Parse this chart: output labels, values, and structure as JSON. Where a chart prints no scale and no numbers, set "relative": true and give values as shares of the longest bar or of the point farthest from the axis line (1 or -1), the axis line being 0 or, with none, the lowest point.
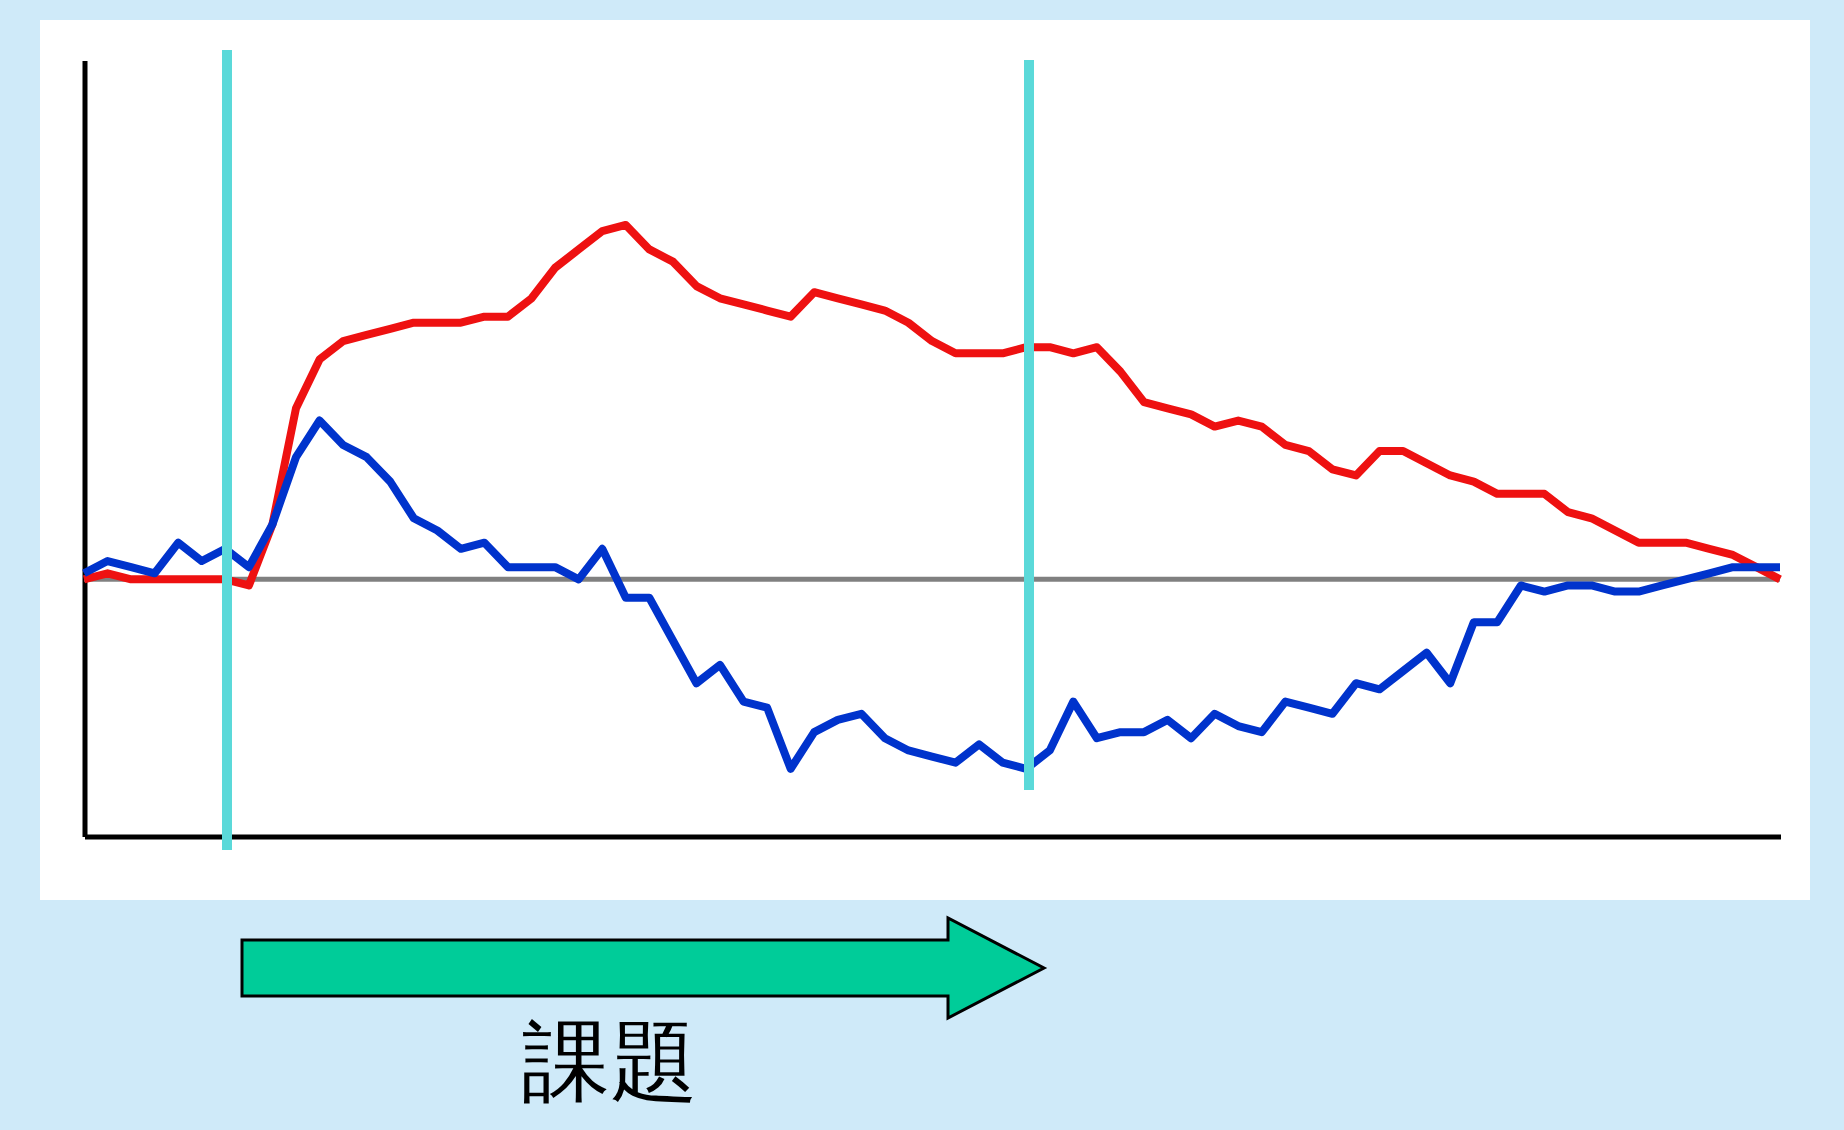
{
  "chart_data": {
    "type": "line",
    "relative": true,
    "categories": [
      null,
      null,
      null,
      null,
      null,
      null,
      null,
      null,
      null,
      null,
      null,
      null,
      null,
      null,
      null,
      null,
      null,
      null,
      null,
      null,
      null,
      null,
      null,
      null,
      null,
      null,
      null,
      null,
      null,
      null,
      null,
      null,
      null,
      null,
      null,
      null,
      null,
      null,
      null,
      null,
      null,
      null,
      null,
      null,
      null,
      null,
      null,
      null,
      null,
      null,
      null,
      null,
      null,
      null,
      null,
      null,
      null,
      null,
      null,
      null,
      null,
      null,
      null,
      null,
      null,
      null,
      null,
      null,
      null,
      null,
      null,
      null,
      null
    ],
    "series": [
      {
        "color": "#ee1111",
        "values": [
          0.42,
          0.43,
          0.42,
          0.42,
          0.42,
          0.42,
          0.42,
          0.41,
          0.51,
          0.7,
          0.78,
          0.81,
          0.82,
          0.83,
          0.84,
          0.84,
          0.84,
          0.85,
          0.85,
          0.88,
          0.93,
          0.96,
          0.99,
          1.0,
          0.96,
          0.94,
          0.9,
          0.88,
          0.87,
          0.86,
          0.85,
          0.89,
          0.88,
          0.87,
          0.86,
          0.84,
          0.81,
          0.79,
          0.79,
          0.79,
          0.8,
          0.8,
          0.79,
          0.8,
          0.76,
          0.71,
          0.7,
          0.69,
          0.67,
          0.68,
          0.67,
          0.64,
          0.63,
          0.6,
          0.59,
          0.63,
          0.63,
          0.61,
          0.59,
          0.58,
          0.56,
          0.56,
          0.56,
          0.53,
          0.52,
          0.5,
          0.48,
          0.48,
          0.48,
          0.47,
          0.46,
          0.44,
          0.42
        ]
      },
      {
        "color": "#0033cc",
        "values": [
          0.43,
          0.45,
          0.44,
          0.43,
          0.48,
          0.45,
          0.47,
          0.44,
          0.51,
          0.62,
          0.68,
          0.64,
          0.62,
          0.58,
          0.52,
          0.5,
          0.47,
          0.48,
          0.44,
          0.44,
          0.44,
          0.42,
          0.47,
          0.39,
          0.39,
          0.32,
          0.25,
          0.28,
          0.22,
          0.21,
          0.11,
          0.17,
          0.19,
          0.2,
          0.16,
          0.14,
          0.13,
          0.12,
          0.15,
          0.12,
          0.11,
          0.14,
          0.22,
          0.16,
          0.17,
          0.17,
          0.19,
          0.16,
          0.2,
          0.18,
          0.17,
          0.22,
          0.21,
          0.2,
          0.25,
          0.24,
          0.27,
          0.3,
          0.25,
          0.35,
          0.35,
          0.41,
          0.4,
          0.41,
          0.41,
          0.4,
          0.4,
          0.41,
          0.42,
          0.43,
          0.44,
          0.44,
          0.44
        ]
      }
    ],
    "ref_lines": [
      {
        "axis": "y",
        "value": 0.42,
        "color": "#808080"
      }
    ],
    "annotations": [
      "課題"
    ],
    "grid": false,
    "marker": "none",
    "line_style": "solid"
  }
}
